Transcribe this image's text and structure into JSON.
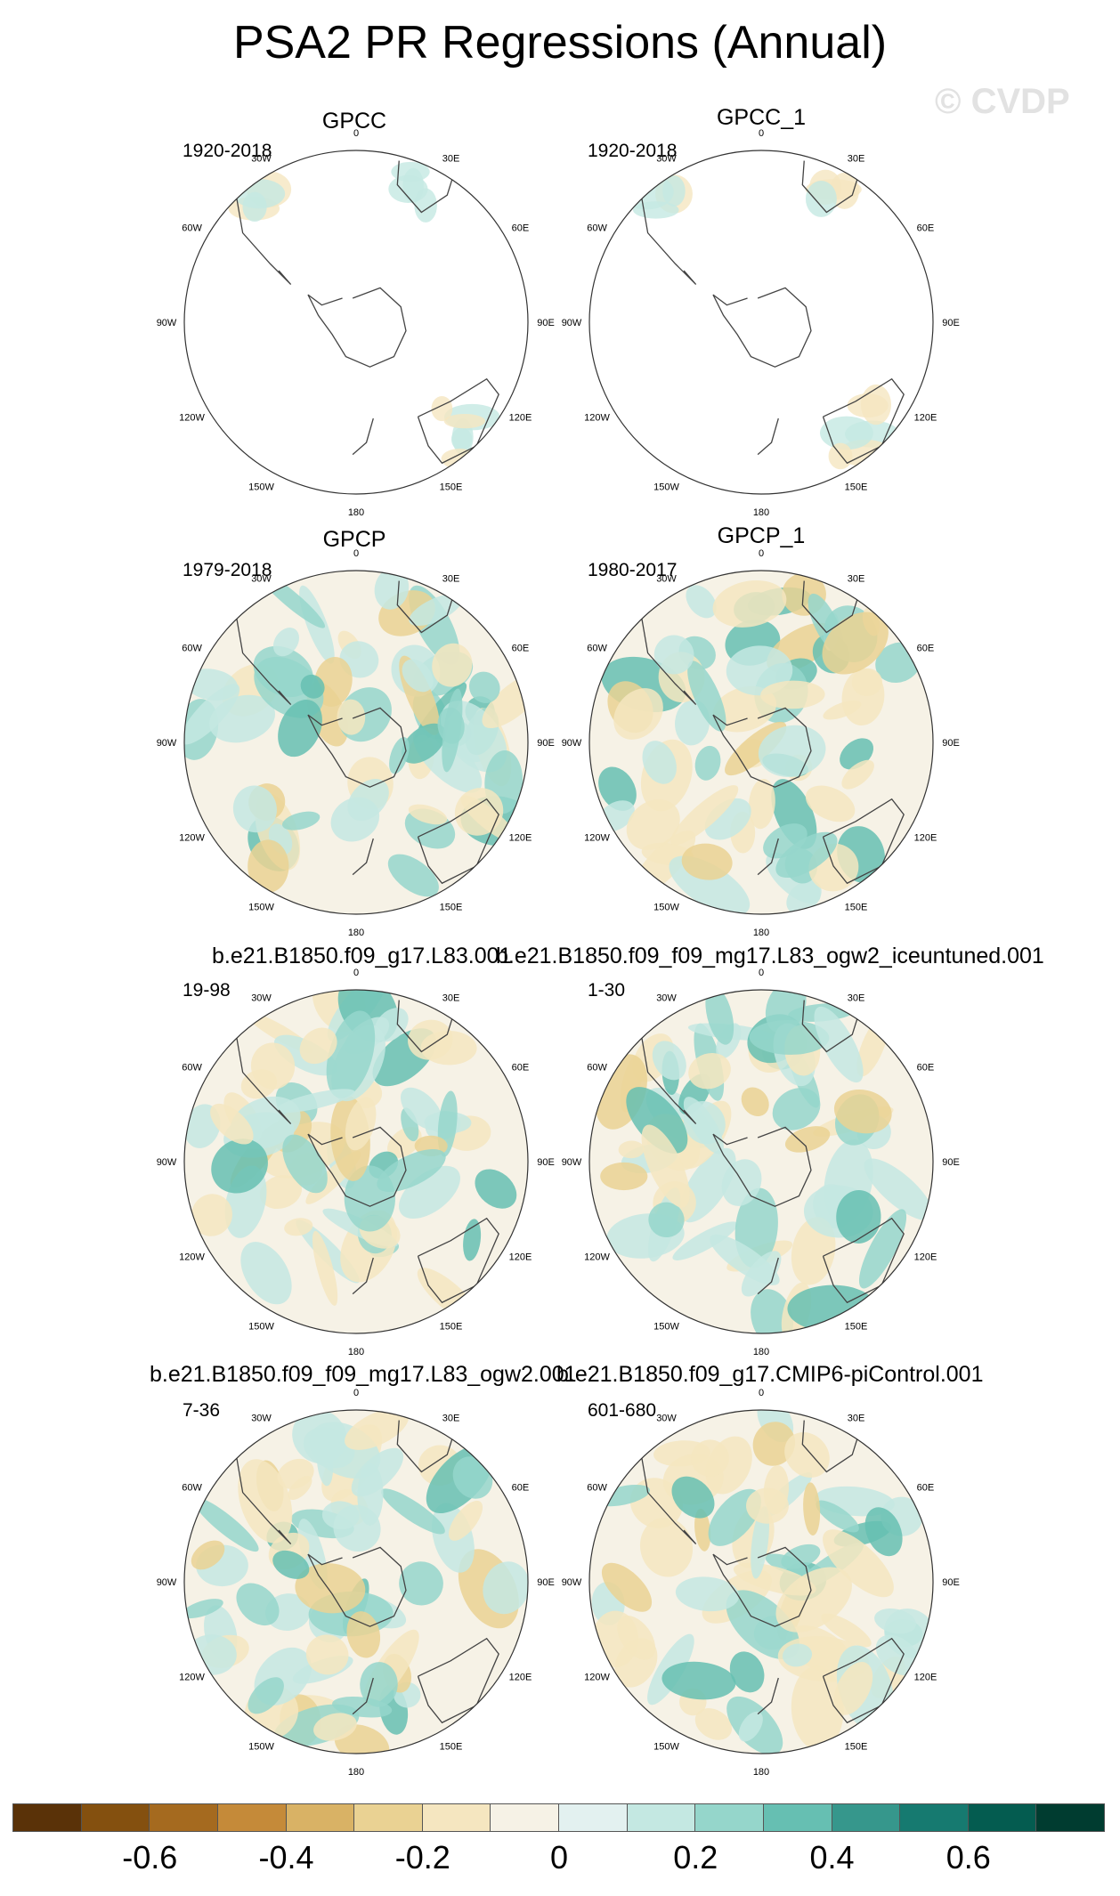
{
  "title": "PSA2 PR Regressions (Annual)",
  "watermark": "© CVDP",
  "panels": [
    {
      "title": "GPCC",
      "period": "1920-2018",
      "coverage": "land"
    },
    {
      "title": "GPCC_1",
      "period": "1920-2018",
      "coverage": "land"
    },
    {
      "title": "GPCP",
      "period": "1979-2018",
      "coverage": "full"
    },
    {
      "title": "GPCP_1",
      "period": "1980-2017",
      "coverage": "full"
    },
    {
      "title": "b.e21.B1850.f09_g17.L83.001",
      "period": "19-98",
      "coverage": "full"
    },
    {
      "title": "b.e21.B1850.f09_f09_mg17.L83_ogw2_iceuntuned.001",
      "period": "1-30",
      "coverage": "full"
    },
    {
      "title": "b.e21.B1850.f09_f09_mg17.L83_ogw2.001",
      "period": "7-36",
      "coverage": "full"
    },
    {
      "title": "b.e21.B1850.f09_g17.CMIP6-piControl.001",
      "period": "601-680",
      "coverage": "full"
    }
  ],
  "longitude_labels": [
    "0",
    "30E",
    "60E",
    "90E",
    "120E",
    "150E",
    "180",
    "150W",
    "120W",
    "90W",
    "60W",
    "30W"
  ],
  "colorbar": {
    "colors": [
      "#5a3208",
      "#84500f",
      "#a56a1f",
      "#c58a39",
      "#d9b265",
      "#ead293",
      "#f5e6c0",
      "#f6f2e6",
      "#e3f1f0",
      "#c4e8e2",
      "#95d6cb",
      "#66bfb2",
      "#36978c",
      "#167a70",
      "#045c50",
      "#003c30"
    ],
    "labels": [
      "-0.6",
      "-0.4",
      "-0.2",
      "0",
      "0.2",
      "0.4",
      "0.6"
    ],
    "label_values": [
      -0.6,
      -0.4,
      -0.2,
      0,
      0.2,
      0.4,
      0.6
    ],
    "min": -0.8,
    "max": 0.8
  }
}
